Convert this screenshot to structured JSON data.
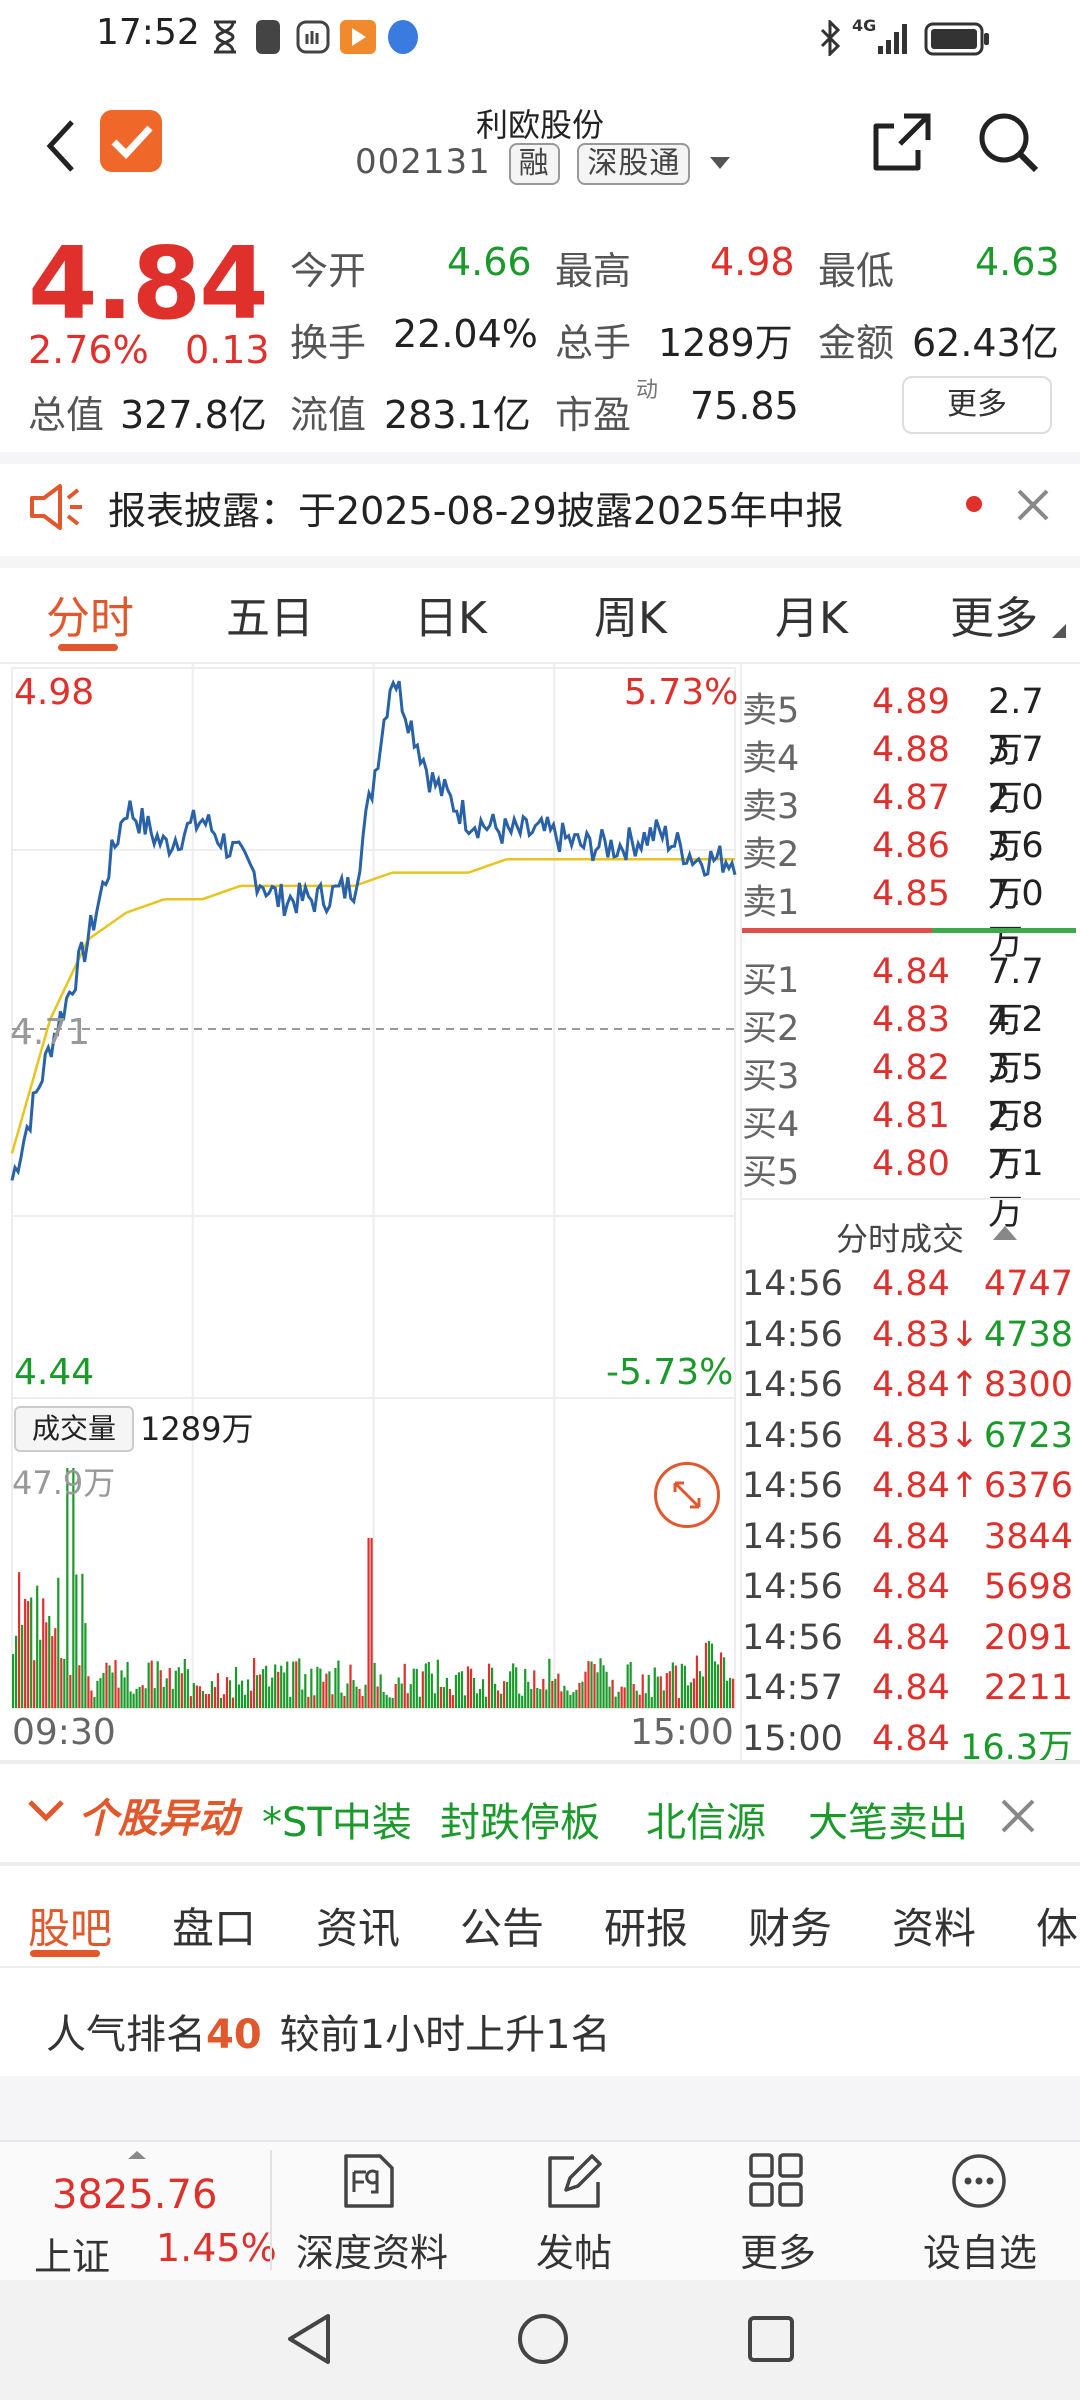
{
  "status_bar": {
    "time": "17:52",
    "network": "4G"
  },
  "header": {
    "title": "利欧股份",
    "code": "002131",
    "tag_margin": "融",
    "tag_connect": "深股通"
  },
  "quote": {
    "price": "4.84",
    "change_pct": "2.76%",
    "change": "0.13",
    "open_label": "今开",
    "open": "4.66",
    "high_label": "最高",
    "high": "4.98",
    "low_label": "最低",
    "low": "4.63",
    "turnover_label": "换手",
    "turnover": "22.04%",
    "volume_label": "总手",
    "volume": "1289万",
    "amount_label": "金额",
    "amount": "62.43亿",
    "mcap_label": "总值",
    "mcap": "327.8亿",
    "float_label": "流值",
    "float_cap": "283.1亿",
    "pe_label": "市盈",
    "pe_sup": "动",
    "pe": "75.85",
    "more_label": "更多"
  },
  "notice": {
    "text": "报表披露：于2025-08-29披露2025年中报"
  },
  "chart_tabs": [
    "分时",
    "五日",
    "日K",
    "周K",
    "月K",
    "更多"
  ],
  "chart_labels": {
    "top_price": "4.98",
    "top_pct": "5.73%",
    "mid_price": "4.71",
    "bottom_price": "4.44",
    "bottom_pct": "-5.73%",
    "volume_label": "成交量",
    "volume_value": "1289万",
    "vol_max": "47.9万",
    "time_start": "09:30",
    "time_end": "15:00"
  },
  "chart_data": {
    "type": "line",
    "x": [
      "09:30",
      "10:00",
      "10:30",
      "11:00",
      "11:30/13:00",
      "13:30",
      "14:00",
      "14:30",
      "15:00"
    ],
    "ylim": [
      4.44,
      4.98
    ],
    "ylim_pct": [
      -5.73,
      5.73
    ],
    "prev_close": 4.71,
    "series": [],
    "price_approx": [
      4.6,
      4.7,
      4.78,
      4.88,
      4.85,
      4.87,
      4.84,
      4.81,
      4.81,
      4.82,
      4.98,
      4.9,
      4.87,
      4.86,
      4.86,
      4.85,
      4.85,
      4.86,
      4.84,
      4.84
    ],
    "avg_approx": [
      4.62,
      4.72,
      4.78,
      4.8,
      4.81,
      4.81,
      4.82,
      4.82,
      4.82,
      4.82,
      4.83,
      4.83,
      4.83,
      4.84,
      4.84,
      4.84,
      4.84,
      4.84,
      4.84,
      4.84
    ]
  },
  "order_book": {
    "sell": [
      {
        "label": "卖5",
        "price": "4.89",
        "vol": "2.7万"
      },
      {
        "label": "卖4",
        "price": "4.88",
        "vol": "3.7万"
      },
      {
        "label": "卖3",
        "price": "4.87",
        "vol": "2.0万"
      },
      {
        "label": "卖2",
        "price": "4.86",
        "vol": "3.6万"
      },
      {
        "label": "卖1",
        "price": "4.85",
        "vol": "7.0万"
      }
    ],
    "buy": [
      {
        "label": "买1",
        "price": "4.84",
        "vol": "7.7万"
      },
      {
        "label": "买2",
        "price": "4.83",
        "vol": "4.2万"
      },
      {
        "label": "买3",
        "price": "4.82",
        "vol": "3.5万"
      },
      {
        "label": "买4",
        "price": "4.81",
        "vol": "2.8万"
      },
      {
        "label": "买5",
        "price": "4.80",
        "vol": "7.1万"
      }
    ]
  },
  "trades": {
    "title": "分时成交",
    "rows": [
      {
        "time": "14:56",
        "price": "4.84",
        "vol": "4747",
        "dir": "",
        "vcolor": "red"
      },
      {
        "time": "14:56",
        "price": "4.83↓",
        "vol": "4738",
        "dir": "down",
        "vcolor": "green"
      },
      {
        "time": "14:56",
        "price": "4.84↑",
        "vol": "8300",
        "dir": "up",
        "vcolor": "red"
      },
      {
        "time": "14:56",
        "price": "4.83↓",
        "vol": "6723",
        "dir": "down",
        "vcolor": "green"
      },
      {
        "time": "14:56",
        "price": "4.84↑",
        "vol": "6376",
        "dir": "up",
        "vcolor": "red"
      },
      {
        "time": "14:56",
        "price": "4.84",
        "vol": "3844",
        "dir": "",
        "vcolor": "red"
      },
      {
        "time": "14:56",
        "price": "4.84",
        "vol": "5698",
        "dir": "",
        "vcolor": "red"
      },
      {
        "time": "14:56",
        "price": "4.84",
        "vol": "2091",
        "dir": "",
        "vcolor": "red"
      },
      {
        "time": "14:57",
        "price": "4.84",
        "vol": "2211",
        "dir": "",
        "vcolor": "red"
      },
      {
        "time": "15:00",
        "price": "4.84",
        "vol": "16.3万",
        "dir": "",
        "vcolor": "green"
      }
    ]
  },
  "abnormal": {
    "title": "个股异动",
    "tags": [
      "*ST中装",
      "封跌停板",
      "北信源",
      "大笔卖出"
    ]
  },
  "bottom_tabs": [
    "股吧",
    "盘口",
    "资讯",
    "公告",
    "研报",
    "财务",
    "资料",
    "体"
  ],
  "popularity": {
    "prefix": "人气排名",
    "rank": "40",
    "suffix": "较前1小时上升1名"
  },
  "footer": {
    "index_value": "3825.76",
    "index_name": "上证",
    "index_pct": "1.45%",
    "items": [
      {
        "label": "深度资料",
        "icon": "f9-icon"
      },
      {
        "label": "发帖",
        "icon": "edit-icon"
      },
      {
        "label": "更多",
        "icon": "grid-icon"
      },
      {
        "label": "设自选",
        "icon": "chat-icon"
      }
    ]
  },
  "colors": {
    "up": "#e0302b",
    "down": "#1a9a2a",
    "accent": "#e0582b",
    "price_line": "#2a62a8",
    "avg_line": "#e8c420"
  }
}
